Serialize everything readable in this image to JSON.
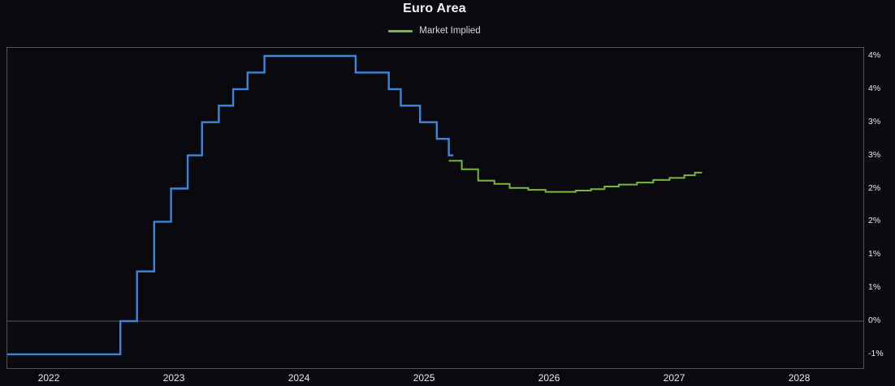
{
  "title": "Euro Area",
  "legend": [
    {
      "label": "Market Implied",
      "color": "#76b83f"
    }
  ],
  "colors": {
    "background": "#0a0a0e",
    "plot_border": "#4d5460",
    "zero_line": "#4d5460",
    "tick_text": "#e8e8e8",
    "policy_blue": "#3c85dc",
    "implied_green": "#76b83f"
  },
  "chart_data": {
    "type": "line",
    "title": "Euro Area",
    "legend_position": "top-center",
    "grid": "zero-line-only",
    "x_axis": {
      "min": 2021.662,
      "max": 2028.506,
      "ticks": [
        {
          "v": 2022,
          "label": "2022"
        },
        {
          "v": 2023,
          "label": "2023"
        },
        {
          "v": 2024,
          "label": "2024"
        },
        {
          "v": 2025,
          "label": "2025"
        },
        {
          "v": 2026,
          "label": "2026"
        },
        {
          "v": 2027,
          "label": "2027"
        },
        {
          "v": 2028,
          "label": "2028"
        }
      ]
    },
    "y_axis": {
      "min": -0.709,
      "max": 4.122,
      "unit": "%",
      "ticks": [
        {
          "v": 4.0,
          "label": "4%"
        },
        {
          "v": 3.5,
          "label": "4%"
        },
        {
          "v": 3.0,
          "label": "3%"
        },
        {
          "v": 2.5,
          "label": "3%"
        },
        {
          "v": 2.0,
          "label": "2%"
        },
        {
          "v": 1.5,
          "label": "2%"
        },
        {
          "v": 1.0,
          "label": "1%"
        },
        {
          "v": 0.5,
          "label": "1%"
        },
        {
          "v": 0.0,
          "label": "0%",
          "grid": true
        },
        {
          "v": -0.5,
          "label": "-1%"
        }
      ]
    },
    "series": [
      {
        "name": "policy-rate",
        "color": "#3c85dc",
        "width": 2.4,
        "step": true,
        "points": [
          [
            2021.662,
            -0.5
          ],
          [
            2022.566,
            0.0
          ],
          [
            2022.699,
            0.75
          ],
          [
            2022.836,
            1.5
          ],
          [
            2022.971,
            2.0
          ],
          [
            2023.104,
            2.5
          ],
          [
            2023.219,
            3.0
          ],
          [
            2023.353,
            3.25
          ],
          [
            2023.468,
            3.5
          ],
          [
            2023.583,
            3.75
          ],
          [
            2023.718,
            4.0
          ],
          [
            2024.447,
            3.75
          ],
          [
            2024.712,
            3.5
          ],
          [
            2024.808,
            3.25
          ],
          [
            2024.962,
            3.0
          ],
          [
            2025.096,
            2.75
          ],
          [
            2025.192,
            2.5
          ],
          [
            2025.228,
            2.5
          ]
        ]
      },
      {
        "name": "market-implied",
        "color": "#76b83f",
        "width": 2,
        "step": true,
        "points": [
          [
            2025.192,
            2.42
          ],
          [
            2025.296,
            2.29
          ],
          [
            2025.426,
            2.12
          ],
          [
            2025.556,
            2.07
          ],
          [
            2025.678,
            2.01
          ],
          [
            2025.827,
            1.98
          ],
          [
            2025.966,
            1.95
          ],
          [
            2026.206,
            1.97
          ],
          [
            2026.329,
            1.99
          ],
          [
            2026.436,
            2.03
          ],
          [
            2026.551,
            2.06
          ],
          [
            2026.696,
            2.09
          ],
          [
            2026.827,
            2.13
          ],
          [
            2026.957,
            2.16
          ],
          [
            2027.075,
            2.2
          ],
          [
            2027.159,
            2.24
          ],
          [
            2027.216,
            2.24
          ]
        ]
      }
    ]
  }
}
